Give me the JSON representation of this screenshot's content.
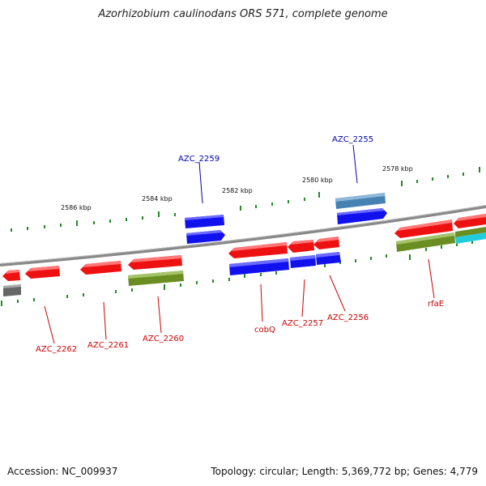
{
  "title": "Azorhizobium caulinodans ORS 571, complete genome",
  "footer": {
    "accession": "Accession: NC_009937",
    "summary": "Topology: circular; Length: 5,369,772 bp; Genes: 4,779"
  },
  "colors": {
    "red": "#ee1111",
    "blue": "#1111ee",
    "olive": "#6b8e23",
    "steel": "#4682b4",
    "gray": "#666666",
    "cyan": "#22ccdd",
    "tick": "#228b22",
    "backbone": "#888888"
  },
  "ticks": [
    {
      "label": "2586 kbp"
    },
    {
      "label": "2584 kbp"
    },
    {
      "label": "2582 kbp"
    },
    {
      "label": "2580 kbp"
    },
    {
      "label": "2578 kbp"
    }
  ],
  "gene_labels": [
    {
      "id": "azc2259",
      "text": "AZC_2259"
    },
    {
      "id": "azc2255",
      "text": "AZC_2255"
    },
    {
      "id": "azc2262",
      "text": "AZC_2262"
    },
    {
      "id": "azc2261",
      "text": "AZC_2261"
    },
    {
      "id": "azc2260",
      "text": "AZC_2260"
    },
    {
      "id": "cobq",
      "text": "cobQ"
    },
    {
      "id": "azc2257",
      "text": "AZC_2257"
    },
    {
      "id": "azc2256",
      "text": "AZC_2256"
    },
    {
      "id": "rfae",
      "text": "rfaE"
    }
  ]
}
